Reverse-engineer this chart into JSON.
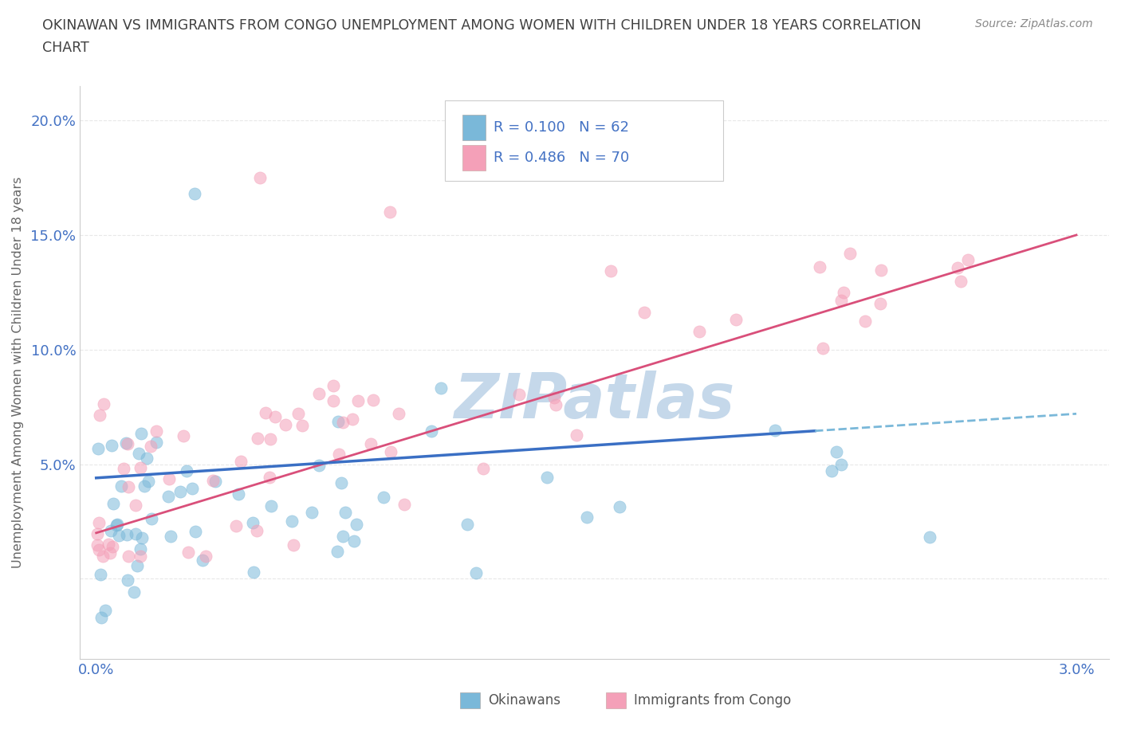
{
  "title_line1": "OKINAWAN VS IMMIGRANTS FROM CONGO UNEMPLOYMENT AMONG WOMEN WITH CHILDREN UNDER 18 YEARS CORRELATION",
  "title_line2": "CHART",
  "source": "Source: ZipAtlas.com",
  "ylabel": "Unemployment Among Women with Children Under 18 years",
  "xlim": [
    -0.0005,
    0.031
  ],
  "ylim": [
    -0.035,
    0.215
  ],
  "yticks": [
    0.0,
    0.05,
    0.1,
    0.15,
    0.2
  ],
  "ytick_labels": [
    "",
    "5.0%",
    "10.0%",
    "15.0%",
    "20.0%"
  ],
  "xticks": [
    0.0,
    0.005,
    0.01,
    0.015,
    0.02,
    0.025,
    0.03
  ],
  "xtick_labels": [
    "0.0%",
    "",
    "",
    "",
    "",
    "",
    "3.0%"
  ],
  "color_okinawan": "#7ab8d9",
  "color_congo": "#f4a0b8",
  "color_trend_okinawan_solid": "#3a6fc4",
  "color_trend_okinawan_dashed": "#7ab8d9",
  "color_trend_congo": "#d94f7a",
  "watermark": "ZIPatlas",
  "watermark_color": "#c5d8ea",
  "background_color": "#ffffff",
  "grid_color": "#e8e8e8",
  "title_color": "#404040",
  "tick_color": "#4472c4",
  "legend_text_color": "#333333",
  "source_color": "#888888"
}
